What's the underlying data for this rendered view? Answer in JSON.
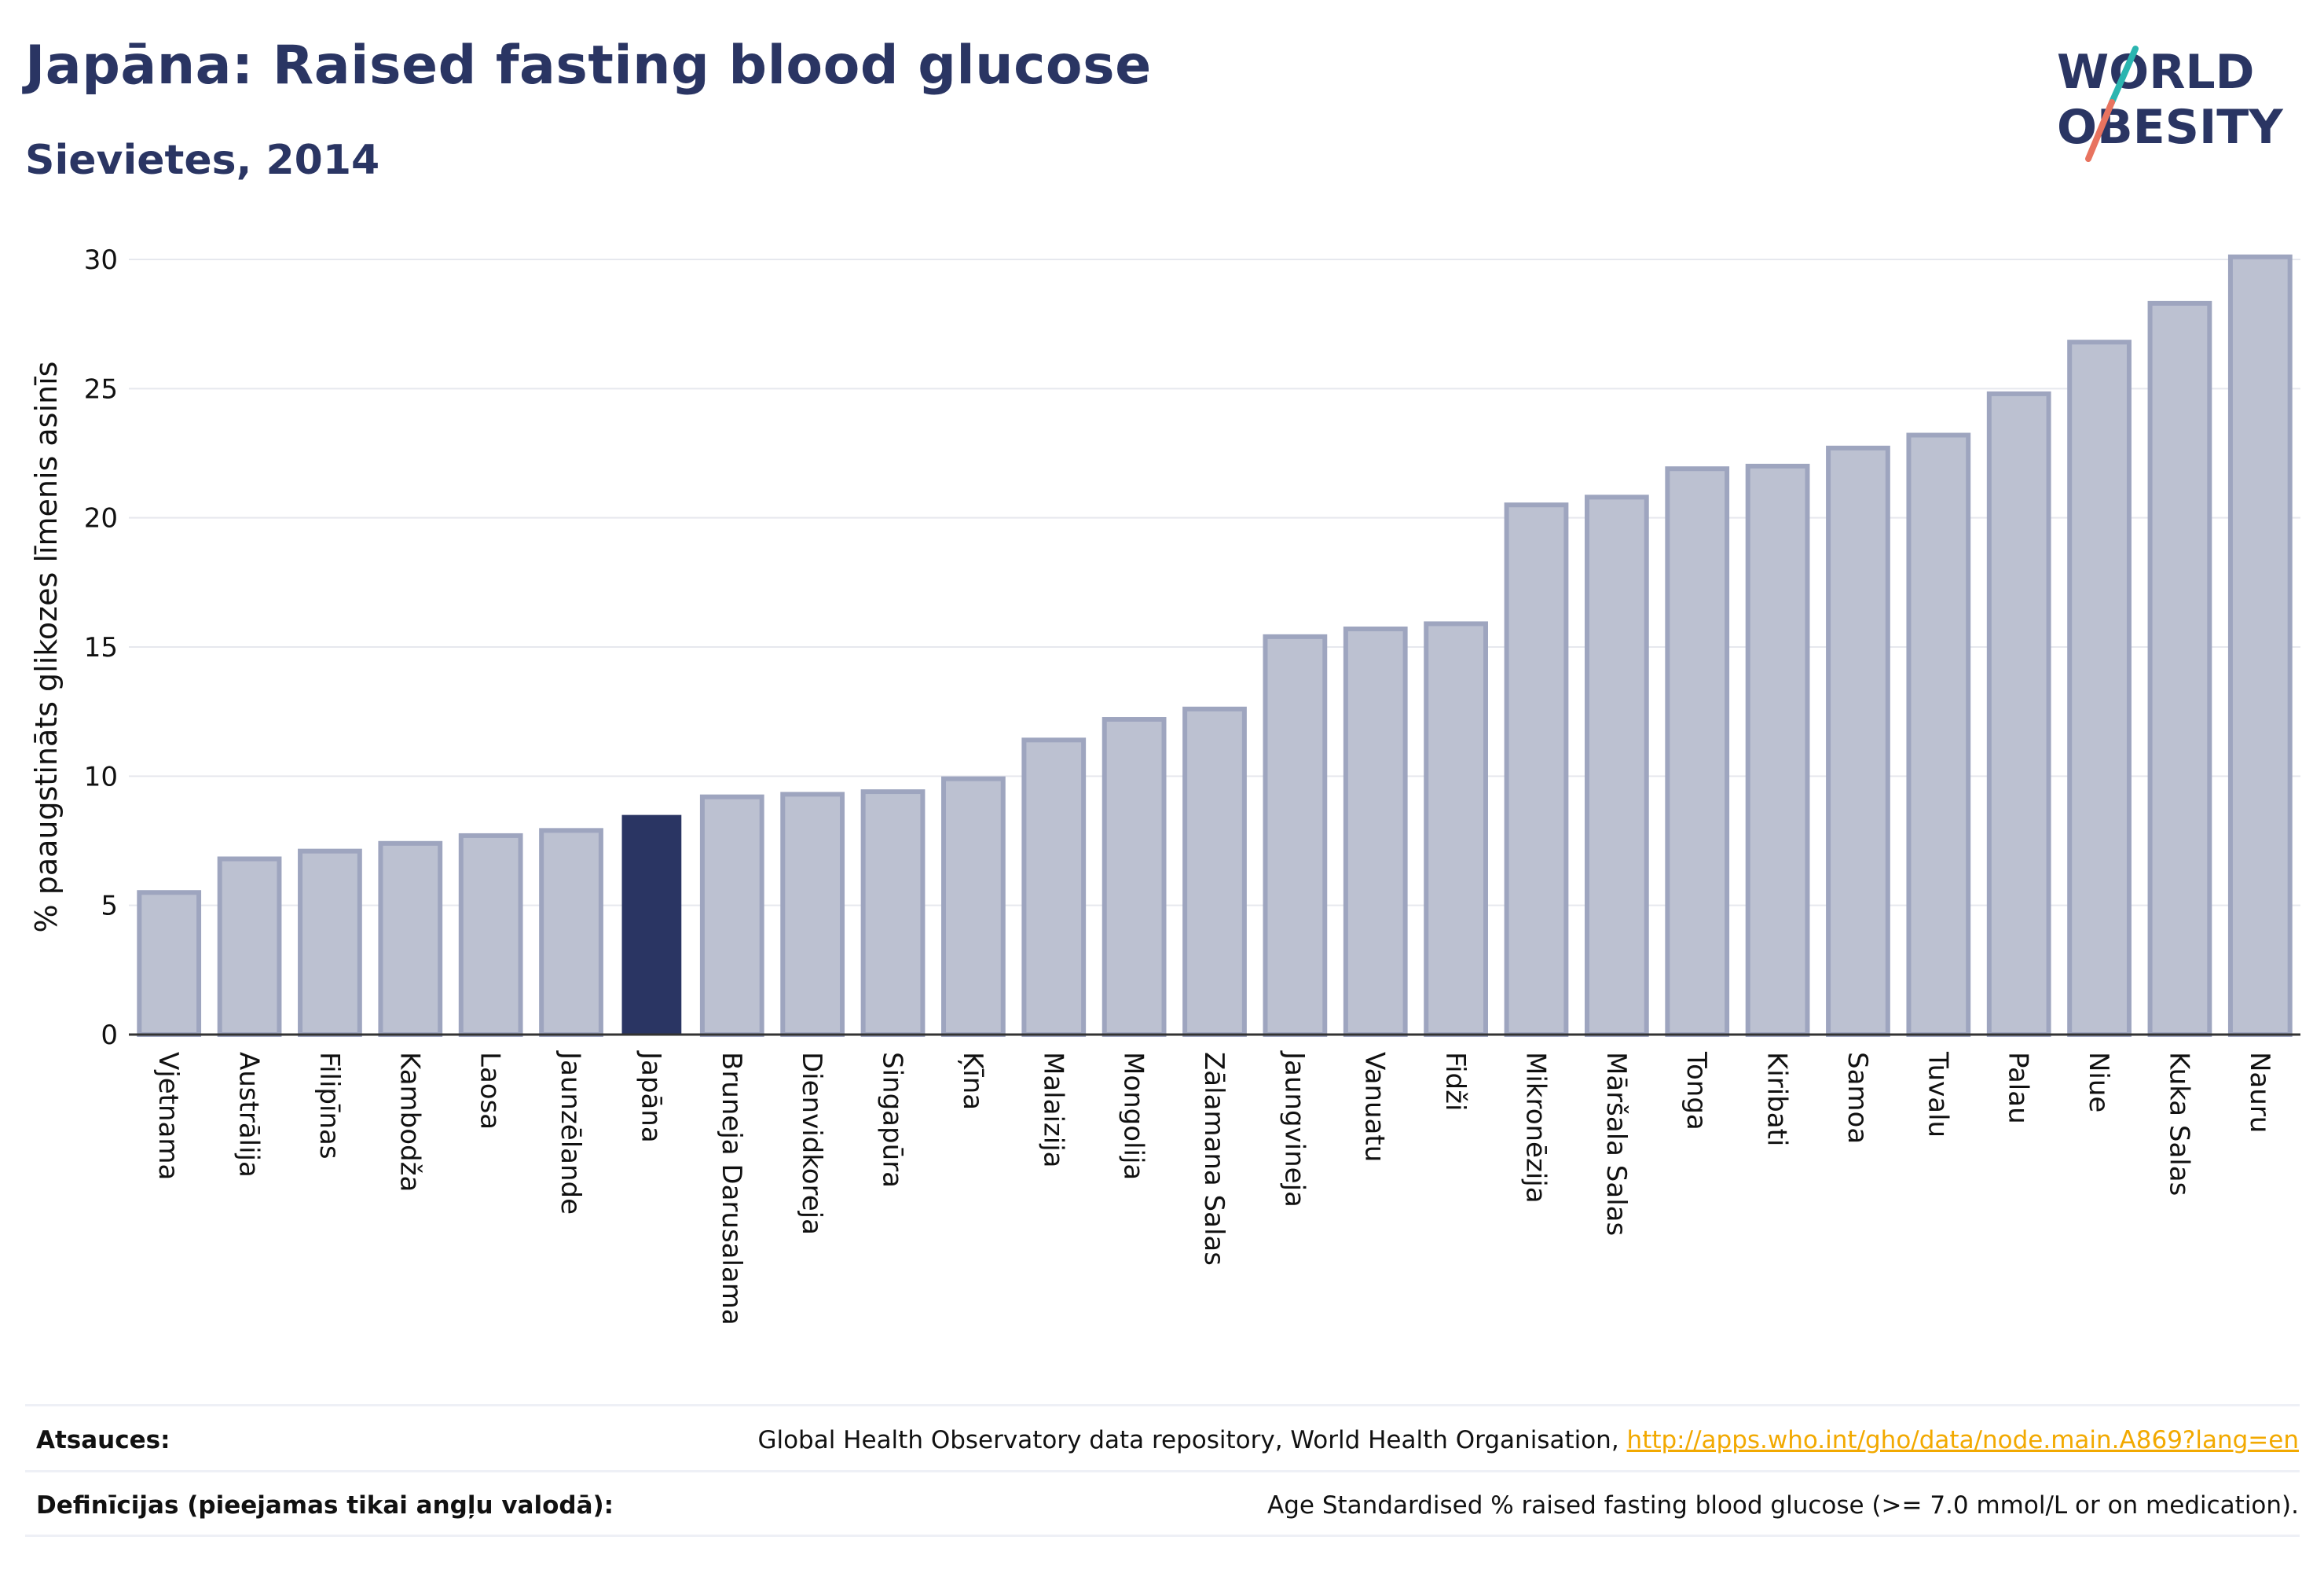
{
  "header": {
    "title": "Japāna: Raised fasting blood glucose",
    "subtitle": "Sievietes, 2014"
  },
  "logo": {
    "line1": "WORLD",
    "line2": "OBESITY",
    "colors": {
      "text": "#2a3563",
      "slash_teal": "#2bb5b0",
      "slash_coral": "#e8735f"
    }
  },
  "chart_data": {
    "type": "bar",
    "ylabel": "% paaugstināts glikozes līmenis asinīs",
    "ylim": [
      0,
      30
    ],
    "yticks": [
      0,
      5,
      10,
      15,
      20,
      25,
      30
    ],
    "grid": true,
    "highlight": "Japāna",
    "colors": {
      "bar": "#bcc1d1",
      "bar_border": "#9ea5bf",
      "highlight": "#2a3563"
    },
    "categories": [
      "Vjetnama",
      "Austrālija",
      "Filipīnas",
      "Kambodža",
      "Laosa",
      "Jaunzēlande",
      "Japāna",
      "Bruneja Darusalama",
      "Dienvidkoreja",
      "Singapūra",
      "Ķīna",
      "Malaizija",
      "Mongolija",
      "Zālamana Salas",
      "Jaungvineja",
      "Vanuatu",
      "Fidži",
      "Mikronēzija",
      "Māršala Salas",
      "Tonga",
      "Kiribati",
      "Samoa",
      "Tuvalu",
      "Palau",
      "Niue",
      "Kuka Salas",
      "Nauru"
    ],
    "values": [
      5.5,
      6.8,
      7.1,
      7.4,
      7.7,
      7.9,
      8.5,
      9.2,
      9.3,
      9.4,
      9.9,
      11.4,
      12.2,
      12.6,
      15.4,
      15.7,
      15.9,
      20.5,
      20.8,
      21.9,
      22.0,
      22.7,
      23.2,
      24.8,
      26.8,
      28.3,
      30.1
    ]
  },
  "footer": {
    "sources_label": "Atsauces:",
    "sources_text": "Global Health Observatory data repository, World Health Organisation, ",
    "sources_link": "http://apps.who.int/gho/data/node.main.A869?lang=en",
    "definitions_label": "Definīcijas (pieejamas tikai angļu valodā):",
    "definitions_text": "Age Standardised % raised fasting blood glucose (>= 7.0 mmol/L or on medication)."
  }
}
